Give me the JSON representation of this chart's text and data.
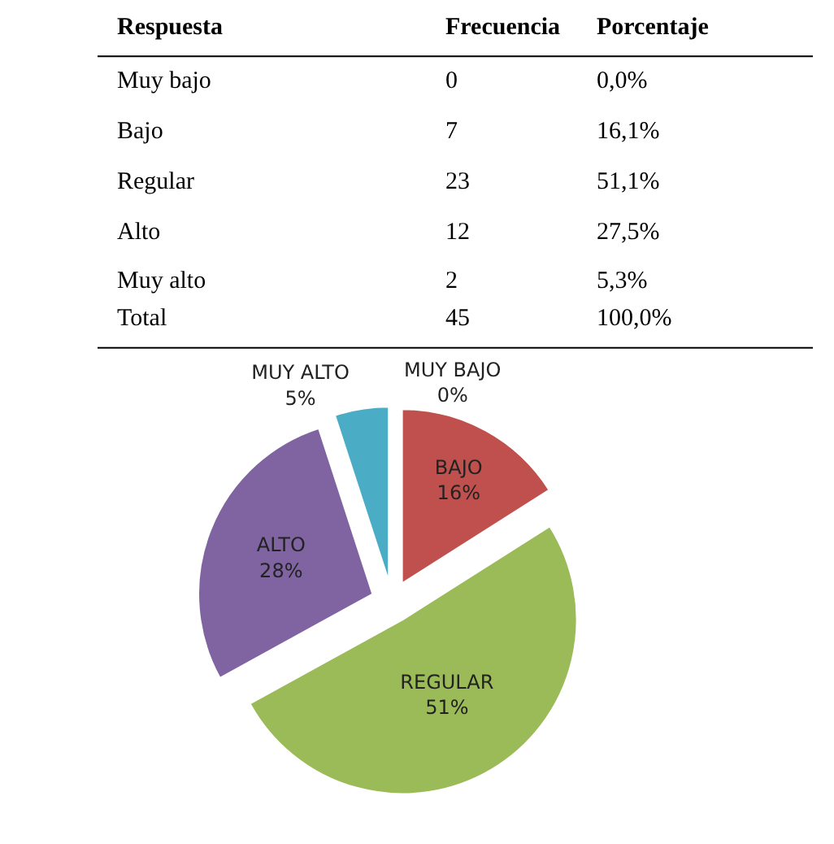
{
  "chart_data": [
    {
      "type": "other",
      "annotations": [
        "Respuesta",
        "Frecuencia",
        "Porcentaje",
        "Muy bajo",
        "0",
        "0,0%",
        "Bajo",
        "7",
        "16,1%",
        "Regular",
        "23",
        "51,1%",
        "Alto",
        "12",
        "27,5%",
        "Muy alto",
        "2",
        "5,3%",
        "Total",
        "45",
        "100,0%"
      ]
    },
    {
      "type": "pie",
      "categories": [
        "MUY BAJO",
        "BAJO",
        "REGULAR",
        "ALTO",
        "MUY ALTO"
      ],
      "values": [
        0,
        16,
        51,
        28,
        5
      ],
      "colors": [
        "#4f81bd",
        "#c0504d",
        "#9bbb59",
        "#8064a2",
        "#4bacc6"
      ],
      "value_labels": [
        "0%",
        "16%",
        "51%",
        "28%",
        "5%"
      ],
      "data_labels": true
    }
  ]
}
